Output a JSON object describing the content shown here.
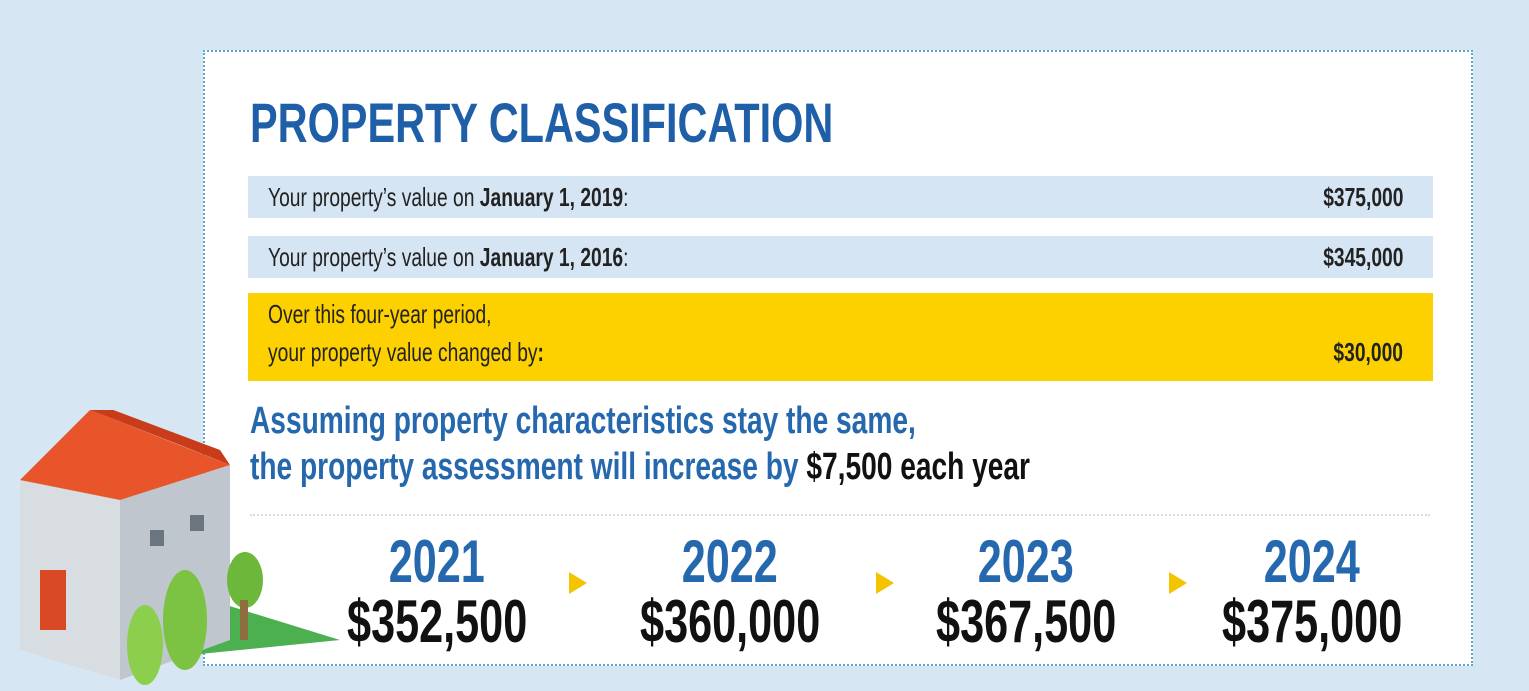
{
  "title": "PROPERTY CLASSIFICATION",
  "rows": [
    {
      "prefix": "Your property’s value on",
      "date": "January 1, 2019",
      "suffix": ":",
      "value": "$375,000"
    },
    {
      "prefix": "Your property’s value on",
      "date": "January 1, 2016",
      "suffix": ":",
      "value": "$345,000"
    }
  ],
  "change": {
    "line1": "Over this four-year period,",
    "line2": "your property value changed by",
    "suffix": ":",
    "value": "$30,000"
  },
  "statement": {
    "line1": "Assuming property characteristics stay the same,",
    "line2": "the property assessment will increase by",
    "amount": "$7,500",
    "tail": "each year"
  },
  "timeline": [
    {
      "year": "2021",
      "value": "$352,500"
    },
    {
      "year": "2022",
      "value": "$360,000"
    },
    {
      "year": "2023",
      "value": "$367,500"
    },
    {
      "year": "2024",
      "value": "$375,000"
    }
  ]
}
